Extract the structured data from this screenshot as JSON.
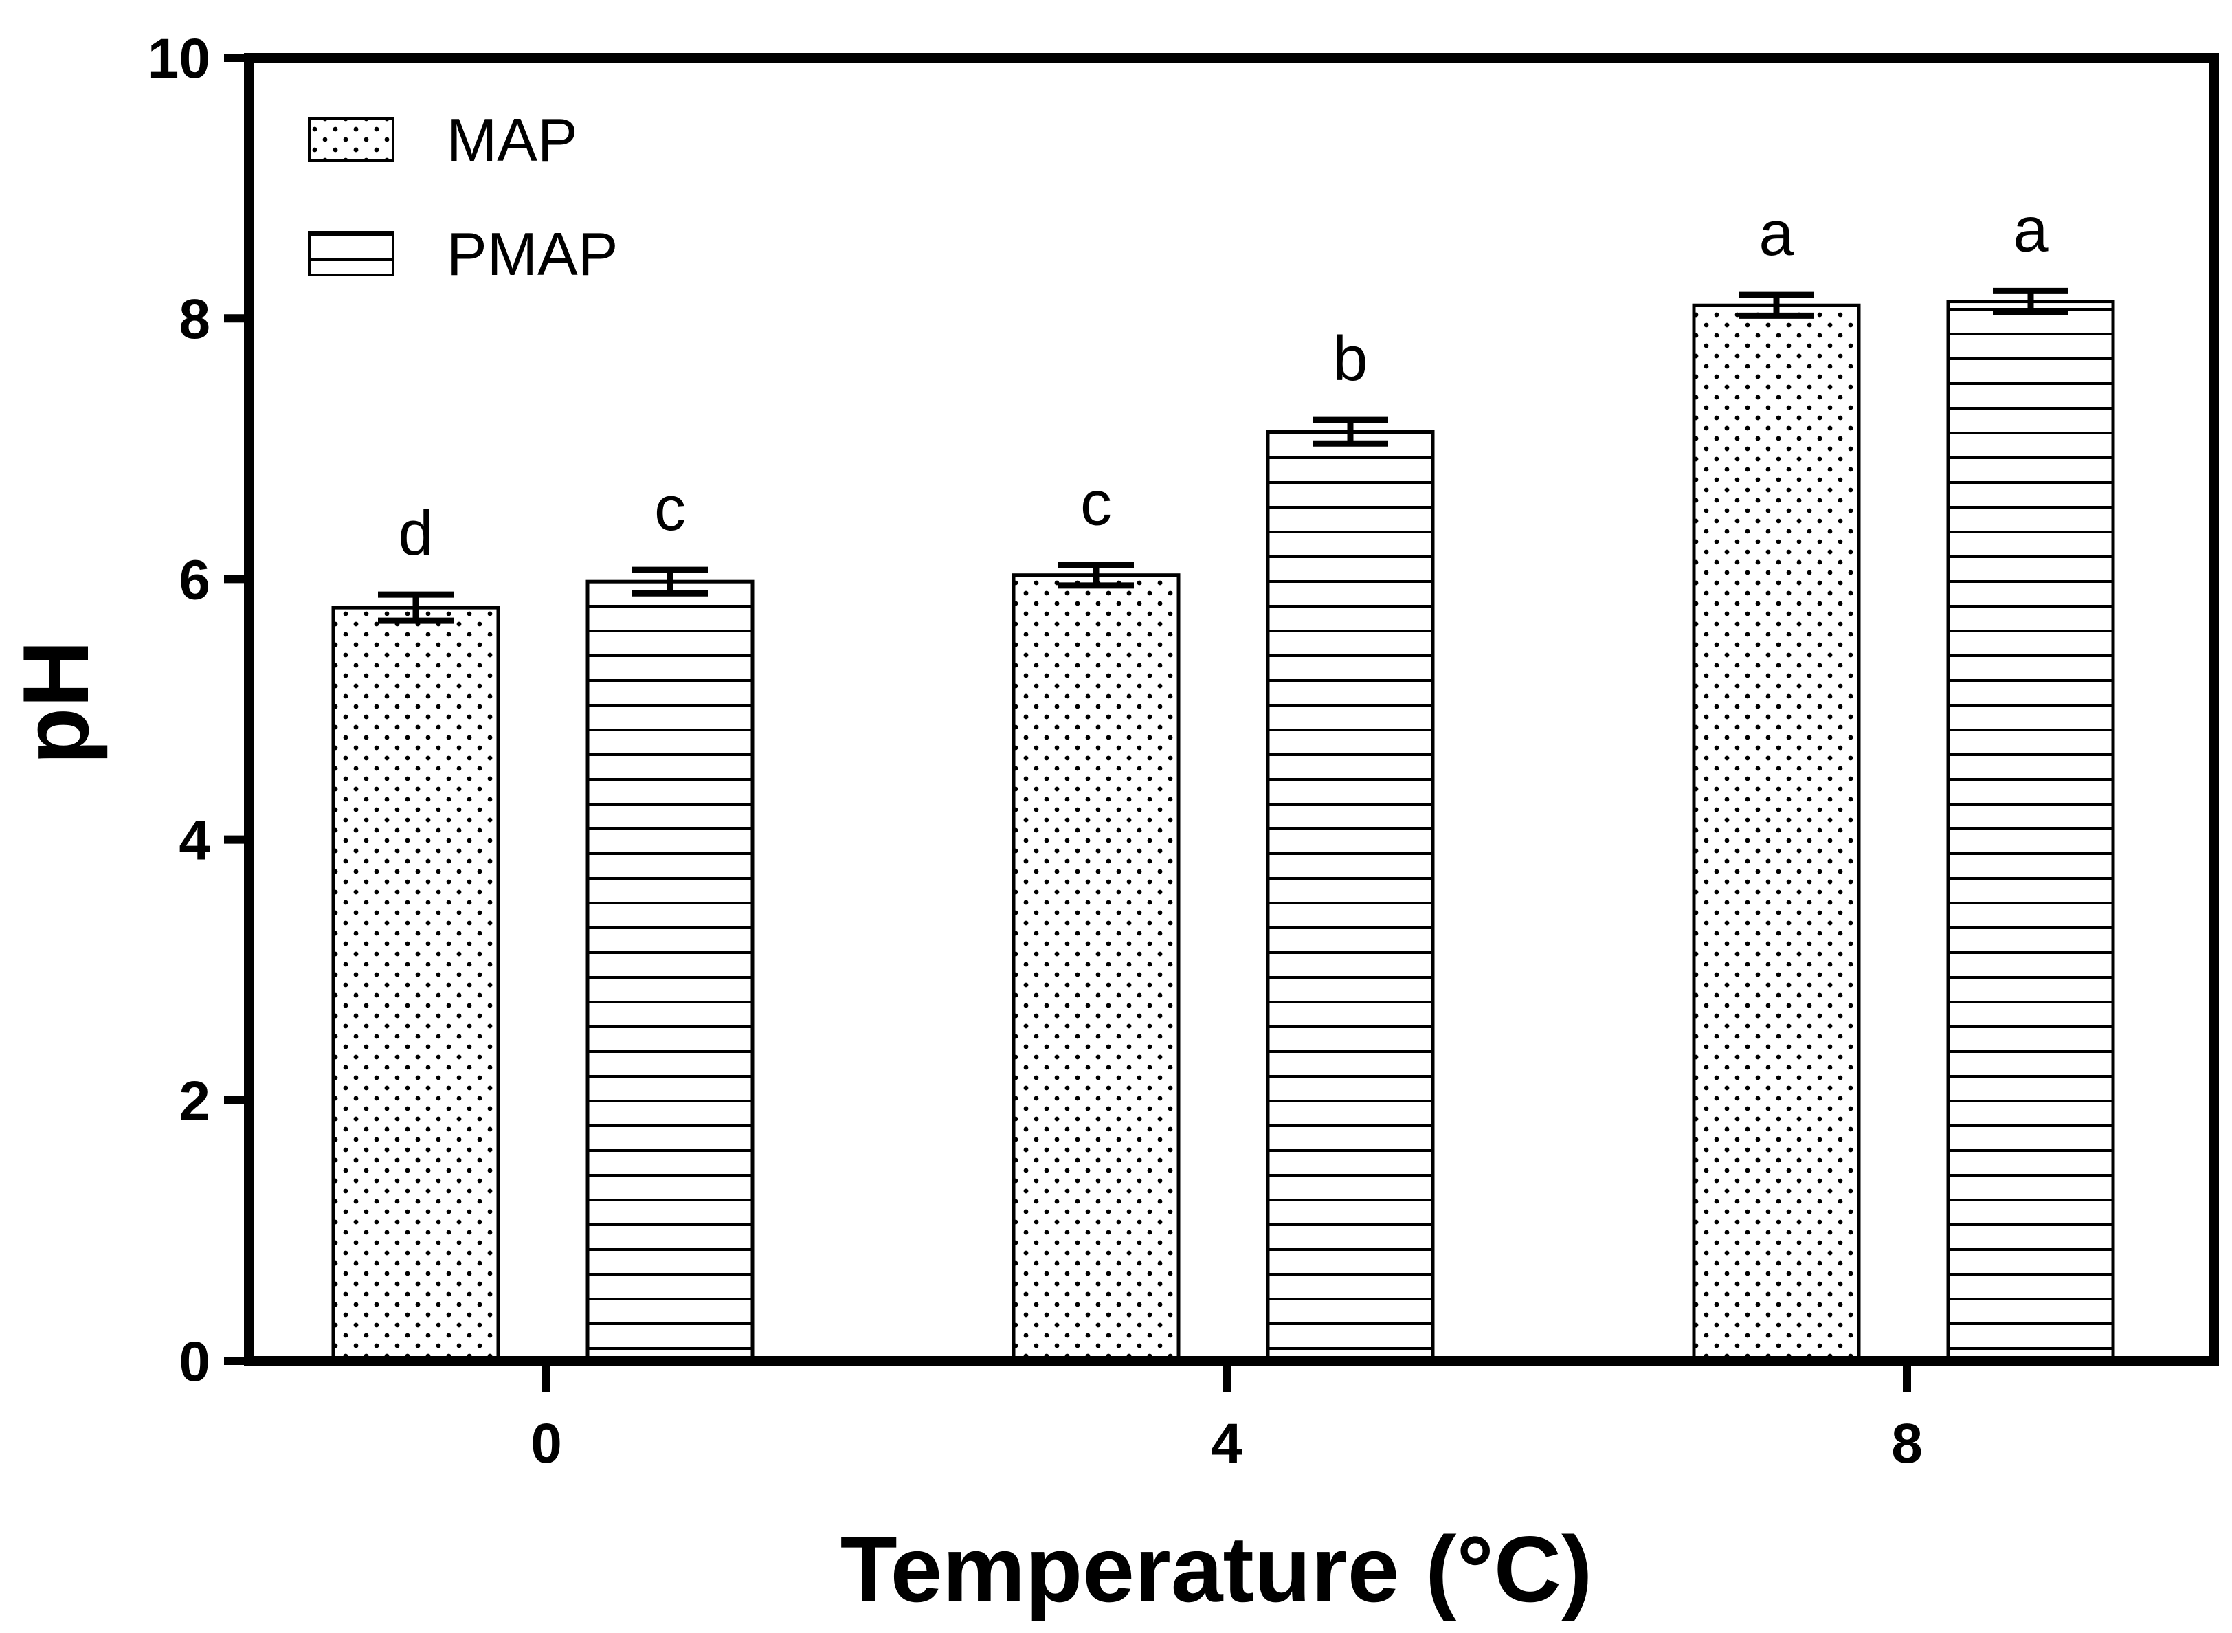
{
  "chart_data": {
    "type": "bar",
    "title": "",
    "xlabel": "Temperature (°C)",
    "ylabel": "pH",
    "ylim": [
      0,
      10
    ],
    "yticks": [
      "0",
      "2",
      "4",
      "6",
      "8",
      "10"
    ],
    "categories": [
      "0",
      "4",
      "8"
    ],
    "grid": false,
    "legend_position": "top-left",
    "series": [
      {
        "name": "MAP",
        "pattern": "dots",
        "values": [
          5.78,
          6.03,
          8.1
        ],
        "errors": [
          0.1,
          0.08,
          0.08
        ],
        "letters": [
          "d",
          "c",
          "a"
        ]
      },
      {
        "name": "PMAP",
        "pattern": "horizontal-lines",
        "values": [
          5.98,
          7.13,
          8.13
        ],
        "errors": [
          0.09,
          0.09,
          0.08
        ],
        "letters": [
          "c",
          "b",
          "a"
        ]
      }
    ],
    "colors": {
      "bar_fill": "#ffffff",
      "stroke": "#000000"
    }
  }
}
